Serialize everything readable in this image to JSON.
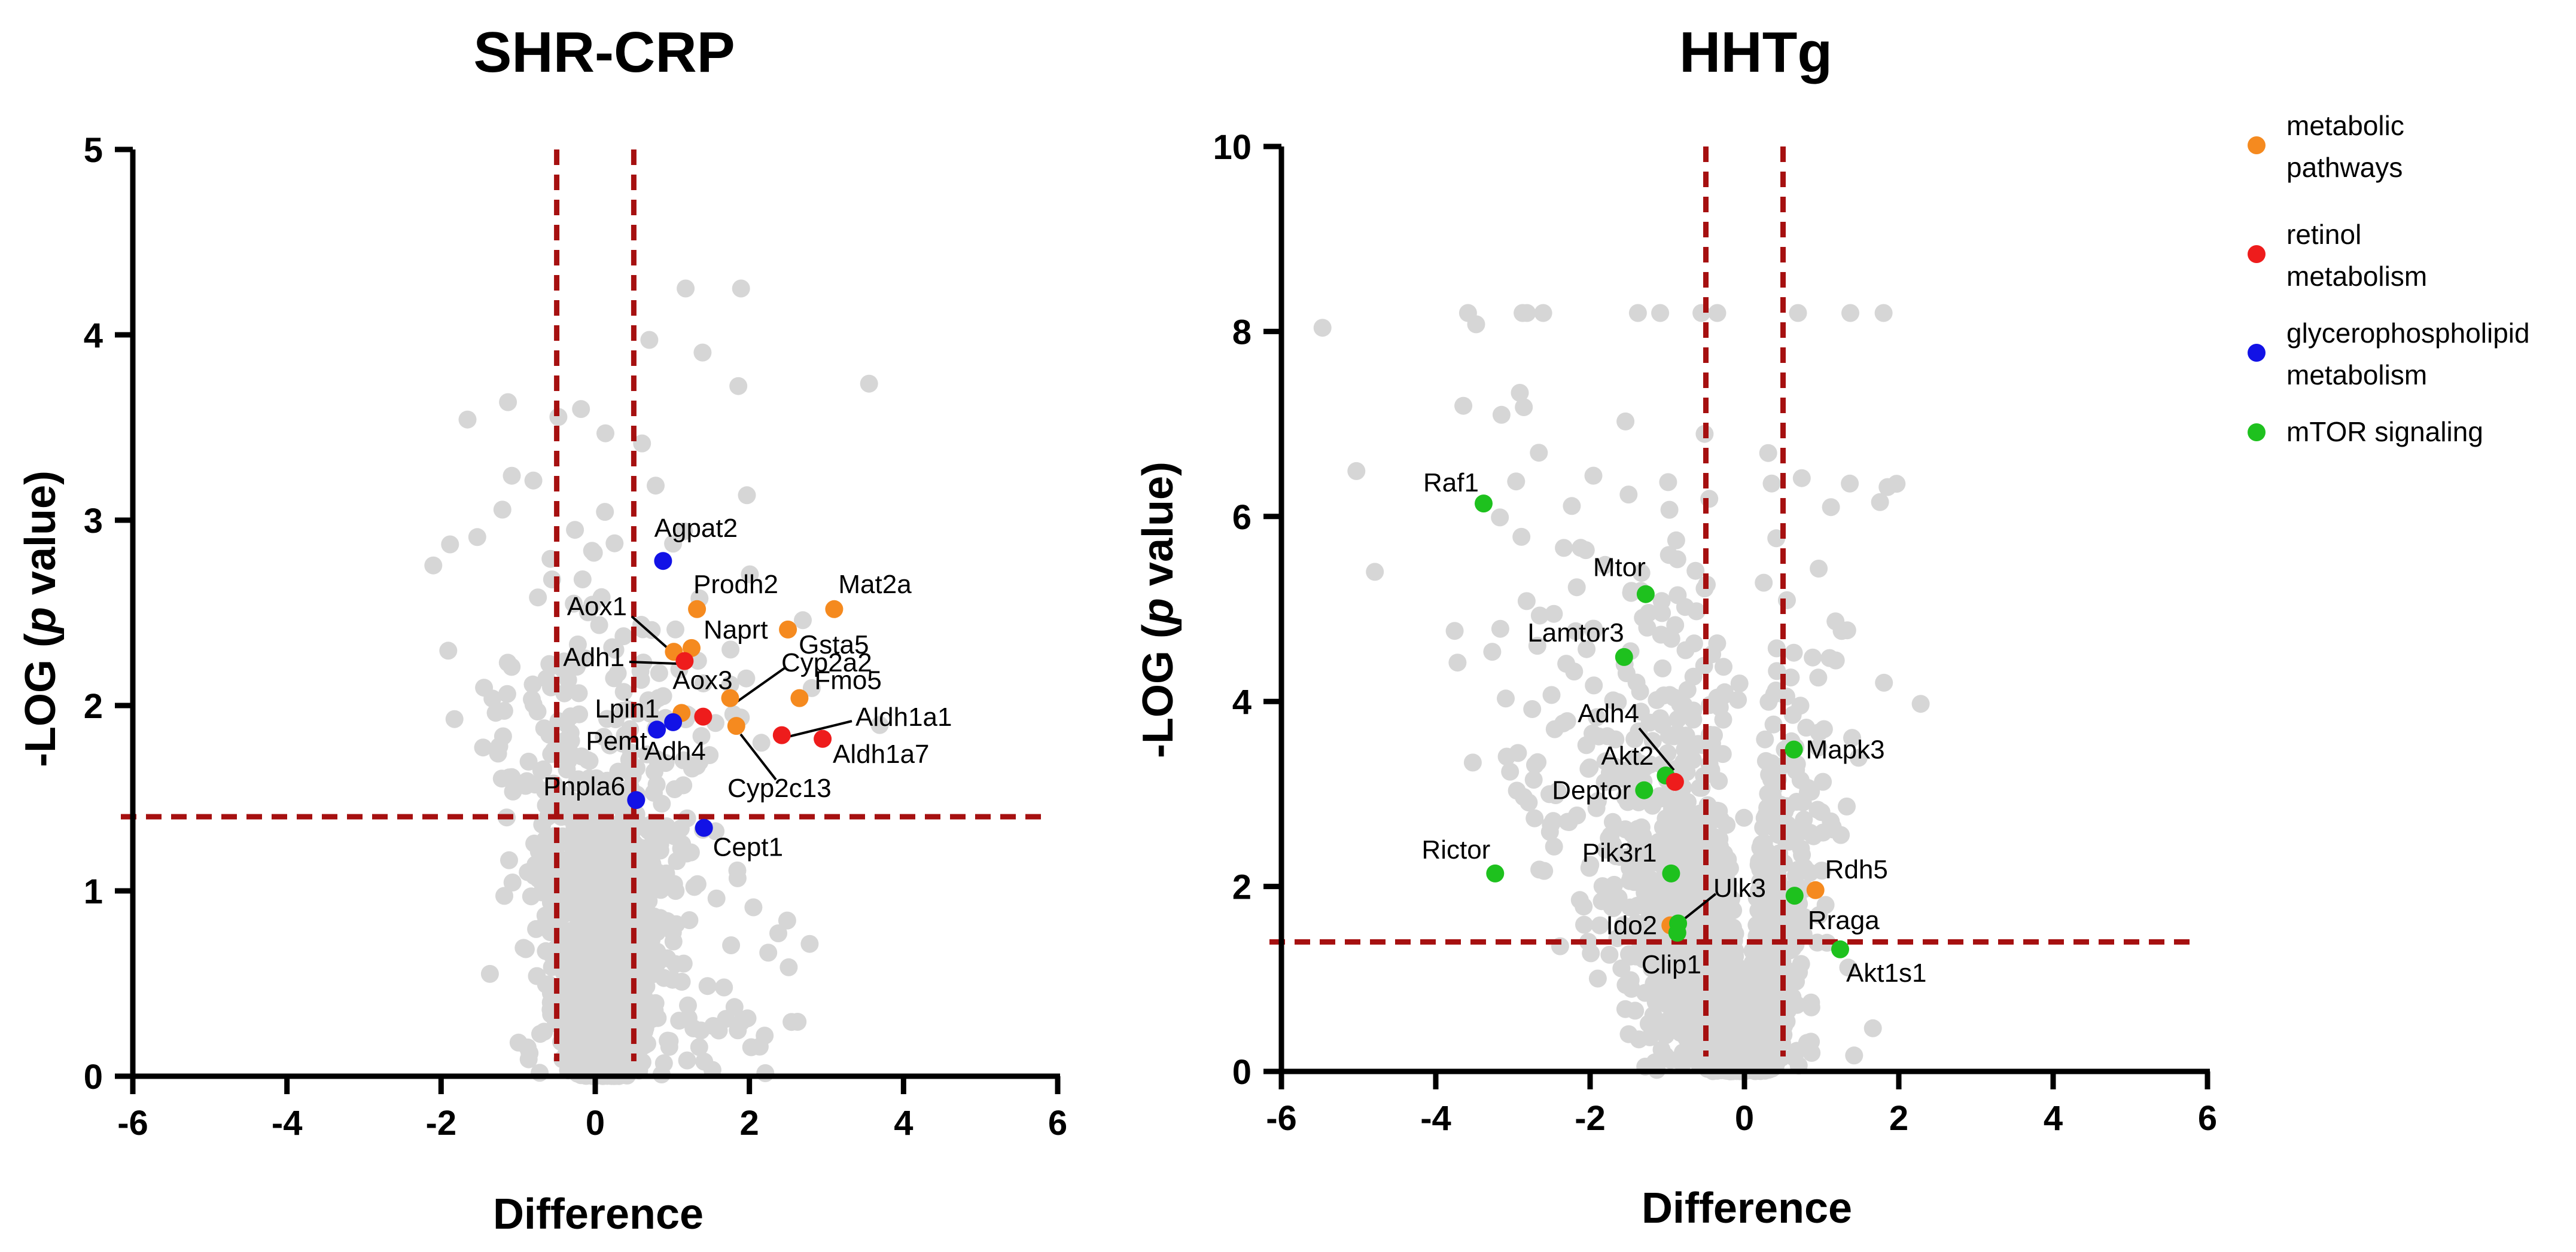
{
  "legend": {
    "entries": [
      {
        "name": "metabolic pathways",
        "lines": [
          "metabolic",
          "pathways"
        ],
        "color": "#f58a1f"
      },
      {
        "name": "retinol metabolism",
        "lines": [
          "retinol",
          "metabolism"
        ],
        "color": "#ee1c1c"
      },
      {
        "name": "glycerophospholipid metabolism",
        "lines": [
          "glycerophospholipid",
          "metabolism"
        ],
        "color": "#1212e6"
      },
      {
        "name": "mTOR signaling",
        "lines": [
          "mTOR signaling"
        ],
        "color": "#1ec11e"
      }
    ]
  },
  "colors": {
    "background_points": "#d6d6d6",
    "threshold": "#a61010",
    "axis": "#000000"
  },
  "chart_data": [
    {
      "type": "scatter",
      "title": "SHR-CRP",
      "xlabel": "Difference",
      "ylabel": "-LOG (p value)",
      "ylabel_parts": [
        "-LOG (",
        "p",
        " value)"
      ],
      "xlim": [
        -6,
        6
      ],
      "ylim": [
        0,
        5
      ],
      "xticks": [
        -6,
        -4,
        -2,
        0,
        2,
        4,
        6
      ],
      "yticks": [
        0,
        1,
        2,
        3,
        4,
        5
      ],
      "thresholds": {
        "x": [
          -0.5,
          0.5
        ],
        "y": 1.4
      },
      "background": {
        "n": 2200,
        "note": "unlabeled proteins, light grey"
      },
      "highlighted": [
        {
          "gene": "Agpat2",
          "x": 0.88,
          "y": 2.78,
          "category": "glycerophospholipid metabolism"
        },
        {
          "gene": "Prodh2",
          "x": 1.32,
          "y": 2.52,
          "category": "metabolic pathways"
        },
        {
          "gene": "Mat2a",
          "x": 3.1,
          "y": 2.52,
          "category": "metabolic pathways"
        },
        {
          "gene": "Gsta5",
          "x": 2.5,
          "y": 2.41,
          "category": "metabolic pathways"
        },
        {
          "gene": "Naprt",
          "x": 1.25,
          "y": 2.31,
          "category": "metabolic pathways"
        },
        {
          "gene": "Aox1",
          "x": 1.02,
          "y": 2.29,
          "category": "metabolic pathways"
        },
        {
          "gene": "Adh1",
          "x": 1.16,
          "y": 2.24,
          "category": "retinol metabolism"
        },
        {
          "gene": "Cyp2a2",
          "x": 1.75,
          "y": 2.04,
          "category": "metabolic pathways"
        },
        {
          "gene": "Fmo5",
          "x": 2.65,
          "y": 2.04,
          "category": "metabolic pathways"
        },
        {
          "gene": "Aox3",
          "x": 1.12,
          "y": 1.96,
          "category": "metabolic pathways"
        },
        {
          "gene": "Lpin1",
          "x": 1.4,
          "y": 1.94,
          "category": "retinol metabolism"
        },
        {
          "gene": "Cyp2c13",
          "x": 1.83,
          "y": 1.89,
          "category": "metabolic pathways"
        },
        {
          "gene": "Adh4",
          "x": 1.01,
          "y": 1.91,
          "category": "glycerophospholipid metabolism"
        },
        {
          "gene": "Pemt",
          "x": 0.8,
          "y": 1.87,
          "category": "glycerophospholipid metabolism"
        },
        {
          "gene": "Aldh1a1",
          "x": 2.42,
          "y": 1.84,
          "category": "retinol metabolism"
        },
        {
          "gene": "Aldh1a7",
          "x": 2.95,
          "y": 1.82,
          "category": "retinol metabolism"
        },
        {
          "gene": "Pnpla6",
          "x": 0.53,
          "y": 1.49,
          "category": "glycerophospholipid metabolism"
        },
        {
          "gene": "Cept1",
          "x": 1.41,
          "y": 1.34,
          "category": "glycerophospholipid metabolism"
        }
      ]
    },
    {
      "type": "scatter",
      "title": "HHTg",
      "xlabel": "Difference",
      "ylabel": "-LOG (p value)",
      "ylabel_parts": [
        "-LOG (",
        "p",
        " value)"
      ],
      "xlim": [
        -6,
        6
      ],
      "ylim": [
        0,
        10
      ],
      "xticks": [
        -6,
        -4,
        -2,
        0,
        2,
        4,
        6
      ],
      "yticks": [
        0,
        2,
        4,
        6,
        8,
        10
      ],
      "thresholds": {
        "x": [
          -0.5,
          0.5
        ],
        "y": 1.4
      },
      "background": {
        "n": 2200,
        "note": "unlabeled proteins, light grey"
      },
      "highlighted": [
        {
          "gene": "Raf1",
          "x": -3.38,
          "y": 6.14,
          "category": "mTOR signaling"
        },
        {
          "gene": "Mtor",
          "x": -1.28,
          "y": 5.16,
          "category": "mTOR signaling"
        },
        {
          "gene": "Lamtor3",
          "x": -1.56,
          "y": 4.48,
          "category": "mTOR signaling"
        },
        {
          "gene": "Mapk3",
          "x": 0.64,
          "y": 3.48,
          "category": "mTOR signaling"
        },
        {
          "gene": "Akt2",
          "x": -1.02,
          "y": 3.2,
          "category": "mTOR signaling"
        },
        {
          "gene": "Adh4",
          "x": -0.9,
          "y": 3.13,
          "category": "retinol metabolism"
        },
        {
          "gene": "Deptor",
          "x": -1.3,
          "y": 3.04,
          "category": "mTOR signaling"
        },
        {
          "gene": "Rictor",
          "x": -3.23,
          "y": 2.14,
          "category": "mTOR signaling"
        },
        {
          "gene": "Pik3r1",
          "x": -0.95,
          "y": 2.14,
          "category": "mTOR signaling"
        },
        {
          "gene": "Rdh5",
          "x": 0.92,
          "y": 1.96,
          "category": "metabolic pathways"
        },
        {
          "gene": "Rraga",
          "x": 0.65,
          "y": 1.9,
          "category": "mTOR signaling"
        },
        {
          "gene": "Ido2",
          "x": -0.96,
          "y": 1.58,
          "category": "metabolic pathways"
        },
        {
          "gene": "Ulk3",
          "x": -0.86,
          "y": 1.6,
          "category": "mTOR signaling"
        },
        {
          "gene": "Clip1",
          "x": -0.87,
          "y": 1.5,
          "category": "mTOR signaling"
        },
        {
          "gene": "Akt1s1",
          "x": 1.24,
          "y": 1.32,
          "category": "mTOR signaling"
        }
      ]
    }
  ]
}
